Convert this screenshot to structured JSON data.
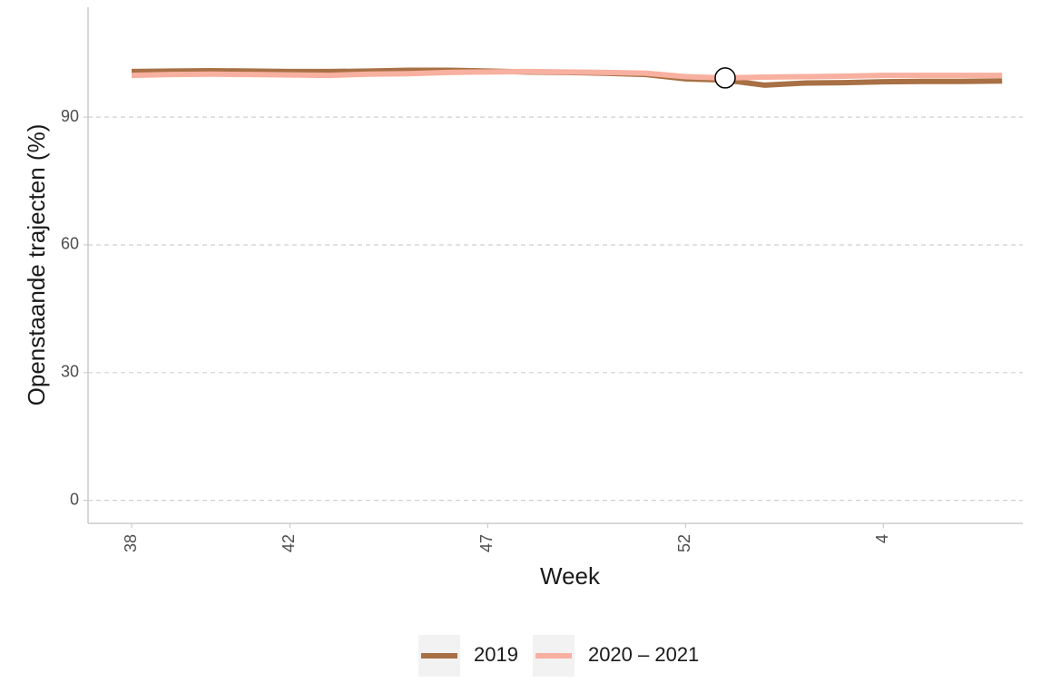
{
  "chart_data": {
    "type": "line",
    "x_label": "Week",
    "y_label": "Openstaande trajecten (%)",
    "categories": [
      "38",
      null,
      null,
      null,
      "42",
      null,
      null,
      null,
      null,
      "47",
      null,
      null,
      null,
      null,
      "52",
      null,
      null,
      null,
      null,
      "4",
      null,
      null,
      null
    ],
    "series": [
      {
        "name": "2019",
        "color": "#a87044",
        "values": [
          100.7,
          100.8,
          100.9,
          100.8,
          100.7,
          100.7,
          100.8,
          101.0,
          101.0,
          100.8,
          100.6,
          100.5,
          100.3,
          100.0,
          99.0,
          98.7,
          97.5,
          98.0,
          98.1,
          98.3,
          98.4,
          98.4,
          98.5
        ]
      },
      {
        "name": "2020 – 2021",
        "color": "#f8b0a0",
        "values": [
          99.8,
          100.0,
          100.1,
          100.0,
          99.9,
          99.8,
          100.1,
          100.2,
          100.5,
          100.6,
          100.7,
          100.6,
          100.5,
          100.3,
          99.5,
          99.2,
          99.4,
          99.5,
          99.6,
          99.8,
          99.8,
          99.8,
          99.8
        ]
      }
    ],
    "highlight_point": {
      "series": 1,
      "index": 15
    },
    "ylim": [
      -5.4,
      115.8
    ],
    "yticks": [
      0,
      30,
      60,
      90
    ],
    "grid": true,
    "legend": "bottom"
  }
}
